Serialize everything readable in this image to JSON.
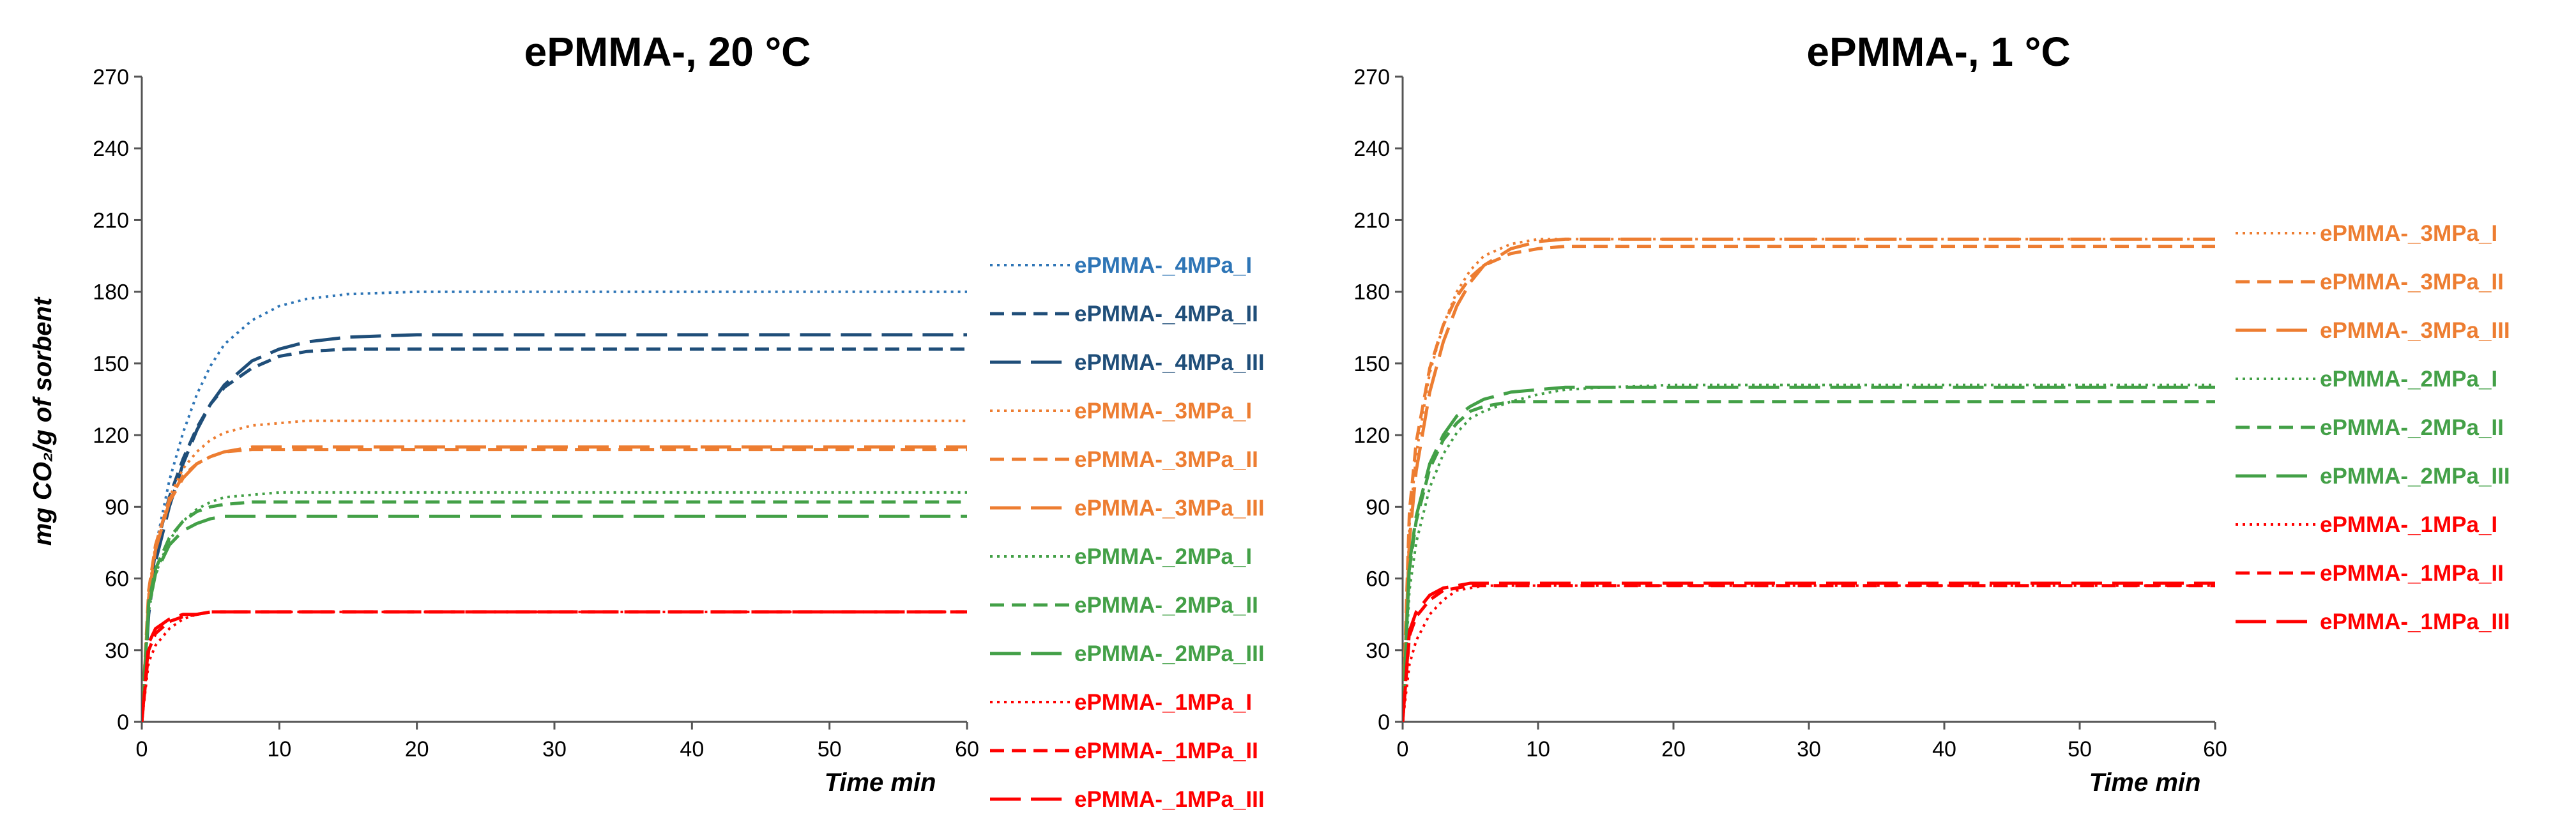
{
  "chart_data": [
    {
      "type": "line",
      "title": "ePMMA-, 20 °C",
      "xlabel": "Time min",
      "ylabel": "mg CO₂/g of sorbent",
      "xlim": [
        0,
        60
      ],
      "ylim": [
        0,
        270
      ],
      "xticks": [
        "0",
        "10",
        "20",
        "30",
        "40",
        "50",
        "60"
      ],
      "yticks": [
        "0",
        "30",
        "60",
        "90",
        "120",
        "150",
        "180",
        "210",
        "240",
        "270"
      ],
      "grid": false,
      "legend_position": "right",
      "x": [
        0,
        0.5,
        1,
        2,
        3,
        4,
        5,
        6,
        8,
        10,
        12,
        15,
        20,
        25,
        30,
        40,
        50,
        60
      ],
      "series": [
        {
          "name": "ePMMA-_4MPa_I",
          "color": "#2e75b6",
          "dash": "dotted",
          "values": [
            0,
            49,
            73,
            101,
            121,
            137,
            149,
            158,
            168,
            174,
            177,
            179,
            180,
            180,
            180,
            180,
            180,
            180
          ]
        },
        {
          "name": "ePMMA-_4MPa_II",
          "color": "#1f4e79",
          "dash": "dashed",
          "values": [
            0,
            50,
            72,
            94,
            110,
            123,
            133,
            140,
            148,
            153,
            155,
            156,
            156,
            156,
            156,
            156,
            156,
            156
          ]
        },
        {
          "name": "ePMMA-_4MPa_III",
          "color": "#1f4e79",
          "dash": "longdash",
          "values": [
            0,
            45,
            67,
            90,
            108,
            122,
            133,
            141,
            151,
            156,
            159,
            161,
            162,
            162,
            162,
            162,
            162,
            162
          ]
        },
        {
          "name": "ePMMA-_3MPa_I",
          "color": "#ed7d31",
          "dash": "dotted",
          "values": [
            0,
            54,
            74,
            94,
            106,
            113,
            118,
            121,
            124,
            125,
            126,
            126,
            126,
            126,
            126,
            126,
            126,
            126
          ]
        },
        {
          "name": "ePMMA-_3MPa_II",
          "color": "#ed7d31",
          "dash": "dashed",
          "values": [
            0,
            55,
            74,
            93,
            103,
            108,
            111,
            113,
            114,
            114,
            114,
            114,
            114,
            114,
            114,
            114,
            114,
            114
          ]
        },
        {
          "name": "ePMMA-_3MPa_III",
          "color": "#ed7d31",
          "dash": "longdash",
          "values": [
            0,
            52,
            72,
            92,
            102,
            108,
            111,
            113,
            115,
            115,
            115,
            115,
            115,
            115,
            115,
            115,
            115,
            115
          ]
        },
        {
          "name": "ePMMA-_2MPa_I",
          "color": "#43a047",
          "dash": "dotted",
          "values": [
            0,
            46,
            62,
            76,
            84,
            89,
            92,
            94,
            95,
            96,
            96,
            96,
            96,
            96,
            96,
            96,
            96,
            96
          ]
        },
        {
          "name": "ePMMA-_2MPa_II",
          "color": "#43a047",
          "dash": "dashed",
          "values": [
            0,
            50,
            64,
            77,
            84,
            88,
            90,
            91,
            92,
            92,
            92,
            92,
            92,
            92,
            92,
            92,
            92,
            92
          ]
        },
        {
          "name": "ePMMA-_2MPa_III",
          "color": "#43a047",
          "dash": "longdash",
          "values": [
            0,
            48,
            62,
            74,
            80,
            83,
            85,
            86,
            86,
            86,
            86,
            86,
            86,
            86,
            86,
            86,
            86,
            86
          ]
        },
        {
          "name": "ePMMA-_1MPa_I",
          "color": "#ff0000",
          "dash": "dotted",
          "values": [
            0,
            25,
            32,
            39,
            43,
            45,
            46,
            46,
            46,
            46,
            46,
            46,
            46,
            46,
            46,
            46,
            46,
            46
          ]
        },
        {
          "name": "ePMMA-_1MPa_II",
          "color": "#ff0000",
          "dash": "dashed",
          "values": [
            0,
            30,
            37,
            42,
            44,
            45,
            46,
            46,
            46,
            46,
            46,
            46,
            46,
            46,
            46,
            46,
            46,
            46
          ]
        },
        {
          "name": "ePMMA-_1MPa_III",
          "color": "#ff0000",
          "dash": "longdash",
          "values": [
            0,
            33,
            39,
            43,
            45,
            45,
            46,
            46,
            46,
            46,
            46,
            46,
            46,
            46,
            46,
            46,
            46,
            46
          ]
        }
      ]
    },
    {
      "type": "line",
      "title": "ePMMA-, 1 °C",
      "xlabel": "Time min",
      "ylabel": "",
      "xlim": [
        0,
        60
      ],
      "ylim": [
        0,
        270
      ],
      "xticks": [
        "0",
        "10",
        "20",
        "30",
        "40",
        "50",
        "60"
      ],
      "yticks": [
        "0",
        "30",
        "60",
        "90",
        "120",
        "150",
        "180",
        "210",
        "240",
        "270"
      ],
      "grid": false,
      "legend_position": "right",
      "x": [
        0,
        0.5,
        1,
        2,
        3,
        4,
        5,
        6,
        8,
        10,
        12,
        15,
        20,
        25,
        30,
        40,
        50,
        60
      ],
      "series": [
        {
          "name": "ePMMA-_3MPa_I",
          "color": "#ed7d31",
          "dash": "dotted",
          "values": [
            0,
            82,
            112,
            146,
            166,
            180,
            189,
            195,
            200,
            202,
            202,
            202,
            202,
            202,
            202,
            202,
            202,
            202
          ]
        },
        {
          "name": "ePMMA-_3MPa_II",
          "color": "#ed7d31",
          "dash": "dashed",
          "values": [
            0,
            88,
            117,
            148,
            166,
            178,
            186,
            191,
            196,
            198,
            199,
            199,
            199,
            199,
            199,
            199,
            199,
            199
          ]
        },
        {
          "name": "ePMMA-_3MPa_III",
          "color": "#ed7d31",
          "dash": "longdash",
          "values": [
            0,
            76,
            105,
            138,
            159,
            174,
            184,
            191,
            198,
            201,
            202,
            202,
            202,
            202,
            202,
            202,
            202,
            202
          ]
        },
        {
          "name": "ePMMA-_2MPa_I",
          "color": "#43a047",
          "dash": "dotted",
          "values": [
            0,
            55,
            75,
            98,
            112,
            121,
            127,
            130,
            134,
            137,
            139,
            140,
            141,
            141,
            141,
            141,
            141,
            141
          ]
        },
        {
          "name": "ePMMA-_2MPa_II",
          "color": "#43a047",
          "dash": "dashed",
          "values": [
            0,
            64,
            84,
            106,
            118,
            125,
            130,
            132,
            134,
            134,
            134,
            134,
            134,
            134,
            134,
            134,
            134,
            134
          ]
        },
        {
          "name": "ePMMA-_2MPa_III",
          "color": "#43a047",
          "dash": "longdash",
          "values": [
            0,
            66,
            86,
            108,
            120,
            128,
            132,
            135,
            138,
            139,
            140,
            140,
            140,
            140,
            140,
            140,
            140,
            140
          ]
        },
        {
          "name": "ePMMA-_1MPa_I",
          "color": "#ff0000",
          "dash": "dotted",
          "values": [
            0,
            24,
            34,
            45,
            51,
            55,
            56,
            57,
            57,
            57,
            57,
            57,
            57,
            57,
            57,
            57,
            57,
            57
          ]
        },
        {
          "name": "ePMMA-_1MPa_II",
          "color": "#ff0000",
          "dash": "dashed",
          "values": [
            0,
            36,
            44,
            51,
            55,
            56,
            57,
            57,
            57,
            57,
            57,
            57,
            57,
            57,
            57,
            57,
            57,
            57
          ]
        },
        {
          "name": "ePMMA-_1MPa_III",
          "color": "#ff0000",
          "dash": "longdash",
          "values": [
            0,
            38,
            46,
            53,
            56,
            57,
            58,
            58,
            58,
            58,
            58,
            58,
            58,
            58,
            58,
            58,
            58,
            58
          ]
        }
      ]
    }
  ]
}
